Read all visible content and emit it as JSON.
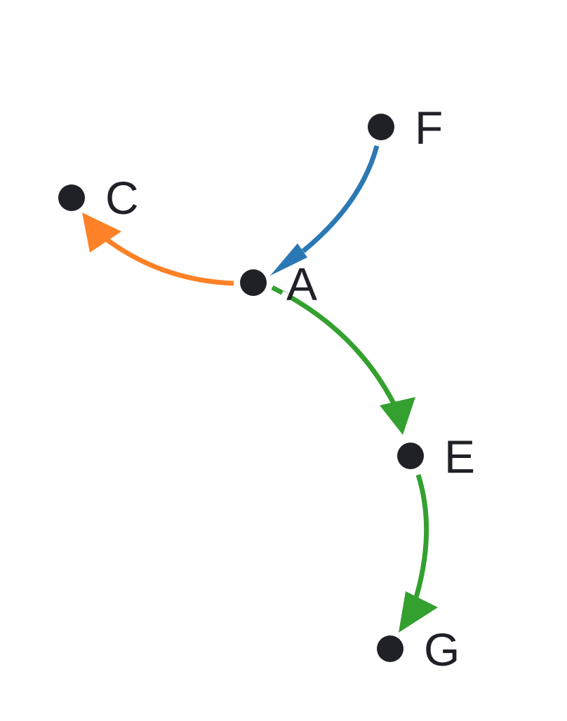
{
  "colors": {
    "node": "#1f2126",
    "edge_blue": "#2a78b4",
    "edge_orange": "#fd8127",
    "edge_green": "#34a02f",
    "background": "#ffffff"
  },
  "nodes": [
    {
      "id": "A",
      "label": "A"
    },
    {
      "id": "C",
      "label": "C"
    },
    {
      "id": "E",
      "label": "E"
    },
    {
      "id": "F",
      "label": "F"
    },
    {
      "id": "G",
      "label": "G"
    }
  ],
  "edges": [
    {
      "from": "F",
      "to": "A",
      "color": "#2a78b4"
    },
    {
      "from": "A",
      "to": "C",
      "color": "#fd8127"
    },
    {
      "from": "A",
      "to": "E",
      "color": "#34a02f"
    },
    {
      "from": "E",
      "to": "G",
      "color": "#34a02f"
    }
  ]
}
